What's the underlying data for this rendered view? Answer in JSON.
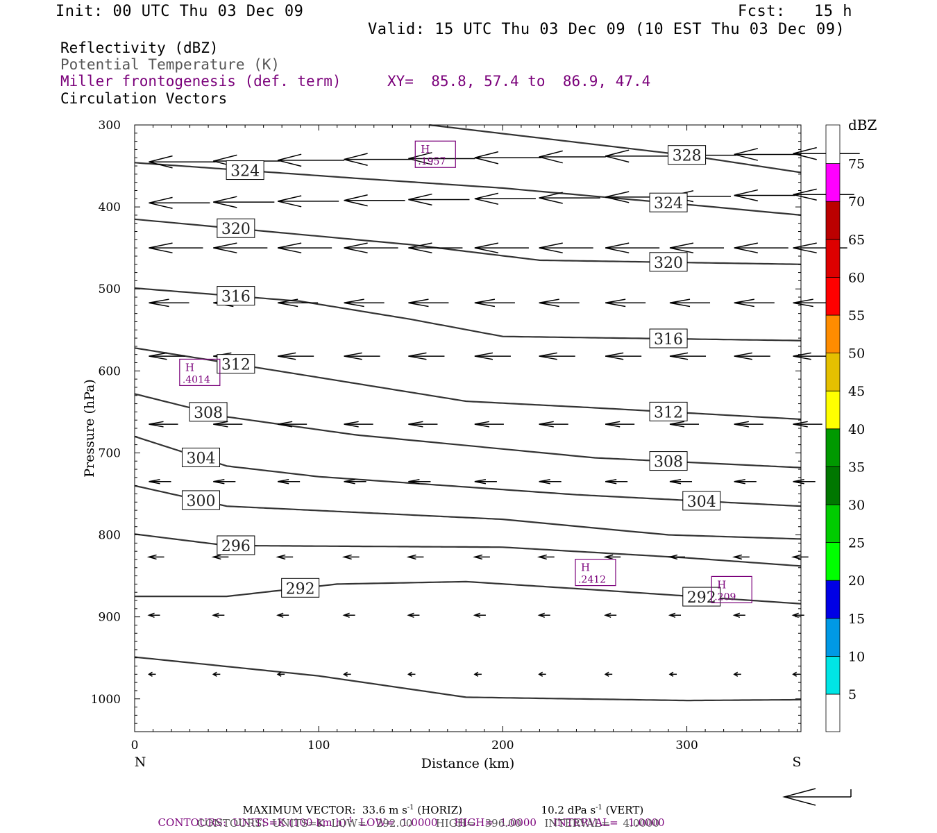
{
  "header": {
    "init": "Init: 00 UTC Thu 03 Dec 09",
    "fcst": "Fcst:   15 h",
    "valid": "Valid: 15 UTC Thu 03 Dec 09 (10 EST Thu 03 Dec 09)"
  },
  "titles": {
    "reflectivity": "Reflectivity (dBZ)",
    "theta": "Potential Temperature (K)",
    "miller": "Miller frontogenesis (def. term)",
    "xy": "XY=  85.8, 57.4 to  86.9, 47.4",
    "circulation": "Circulation Vectors"
  },
  "colors": {
    "purple": "#7a007a",
    "contour": "#333333"
  },
  "footer": {
    "max_vector": "MAXIMUM VECTOR:  33.6 m s",
    "max_vector_sup": "-1",
    "max_vector_horiz": " (HORIZ)",
    "max_vector_vert": "10.2 dPa s",
    "max_vector_vert_sup": "-1",
    "max_vector_vert_tail": " (VERT)",
    "contours_purple_a": "CONTOURS:  UNITS=K (100 km h)",
    "contours_purple_sup": "-1",
    "contours_purple_b": "  LOW=  1.0000     HIGH=  1.0000     INTERVAL=   1.0000",
    "contours_gray": "CONTOURS:  UNITS=K  LOW=   292.00       HIGH=   396.00       INTERVAL=    4.0000"
  },
  "chart_data": {
    "type": "cross-section",
    "xlabel": "Distance (km)",
    "ylabel": "Pressure (hPa)",
    "x_ticks": [
      0,
      100,
      200,
      300
    ],
    "y_ticks": [
      300,
      400,
      500,
      600,
      700,
      800,
      900,
      1000
    ],
    "xlim": [
      0,
      362
    ],
    "ylim": [
      300,
      1040
    ],
    "y_scale": "linear (inverted, pressure increasing downward)",
    "left_end_label": "N",
    "right_end_label": "S",
    "colorbar": {
      "title": "dBZ",
      "ticks": [
        5,
        10,
        15,
        20,
        25,
        30,
        35,
        40,
        45,
        50,
        55,
        60,
        65,
        70,
        75
      ],
      "colors": [
        "#ffffff",
        "#00e5e5",
        "#0099e5",
        "#0000e5",
        "#0000cc",
        "#00ff00",
        "#00cc00",
        "#009900",
        "#007700",
        "#ffff00",
        "#e5c000",
        "#ff8c00",
        "#ff0000",
        "#dd0000",
        "#bb0000",
        "#ff00ff",
        "#9955cc",
        "#ffffff"
      ]
    },
    "theta_contours": [
      {
        "label": "328",
        "points": [
          [
            160,
            300
          ],
          [
            300,
            337
          ],
          [
            362,
            358
          ]
        ]
      },
      {
        "label": "324",
        "points": [
          [
            0,
            346
          ],
          [
            120,
            365
          ],
          [
            200,
            377
          ],
          [
            300,
            397
          ],
          [
            362,
            410
          ]
        ]
      },
      {
        "label": "320",
        "points": [
          [
            0,
            415
          ],
          [
            150,
            446
          ],
          [
            220,
            465
          ],
          [
            362,
            470
          ]
        ]
      },
      {
        "label": "316",
        "points": [
          [
            0,
            499
          ],
          [
            90,
            515
          ],
          [
            150,
            537
          ],
          [
            200,
            558
          ],
          [
            362,
            563
          ]
        ]
      },
      {
        "label": "312",
        "points": [
          [
            0,
            572
          ],
          [
            100,
            608
          ],
          [
            180,
            637
          ],
          [
            250,
            645
          ],
          [
            362,
            659
          ]
        ]
      },
      {
        "label": "308",
        "points": [
          [
            0,
            628
          ],
          [
            50,
            656
          ],
          [
            120,
            678
          ],
          [
            250,
            706
          ],
          [
            362,
            718
          ]
        ]
      },
      {
        "label": "304",
        "points": [
          [
            0,
            680
          ],
          [
            50,
            716
          ],
          [
            100,
            729
          ],
          [
            240,
            751
          ],
          [
            362,
            765
          ]
        ]
      },
      {
        "label": "300",
        "points": [
          [
            0,
            740
          ],
          [
            50,
            765
          ],
          [
            200,
            781
          ],
          [
            290,
            800
          ],
          [
            362,
            805
          ]
        ]
      },
      {
        "label": "296",
        "points": [
          [
            0,
            799
          ],
          [
            50,
            813
          ],
          [
            200,
            815
          ],
          [
            300,
            828
          ],
          [
            362,
            838
          ]
        ]
      },
      {
        "label": "292",
        "points": [
          [
            0,
            875
          ],
          [
            50,
            875
          ],
          [
            110,
            860
          ],
          [
            180,
            857
          ],
          [
            250,
            867
          ],
          [
            362,
            884
          ]
        ]
      },
      {
        "label": "",
        "points": [
          [
            0,
            949
          ],
          [
            100,
            972
          ],
          [
            180,
            998
          ],
          [
            300,
            1002
          ],
          [
            362,
            1001
          ]
        ]
      }
    ],
    "maxima": [
      {
        "label": "H",
        "value": ".1957",
        "x": 163,
        "p": 340
      },
      {
        "label": "H",
        "value": ".4014",
        "x": 35,
        "p": 606
      },
      {
        "label": "H",
        "value": ".2412",
        "x": 250,
        "p": 850
      },
      {
        "label": "H",
        "value": ".209",
        "x": 324,
        "p": 871
      }
    ],
    "vector_levels_hpa": [
      340,
      390,
      450,
      517,
      582,
      665,
      735,
      827,
      898,
      970
    ],
    "vector_columns_km": [
      10,
      45,
      80,
      116,
      151,
      187,
      222,
      258,
      293,
      328,
      360
    ],
    "vectors_summary": "Circulation vectors point northward (leftward) at all levels; strongest aloft, weakening toward the surface."
  }
}
